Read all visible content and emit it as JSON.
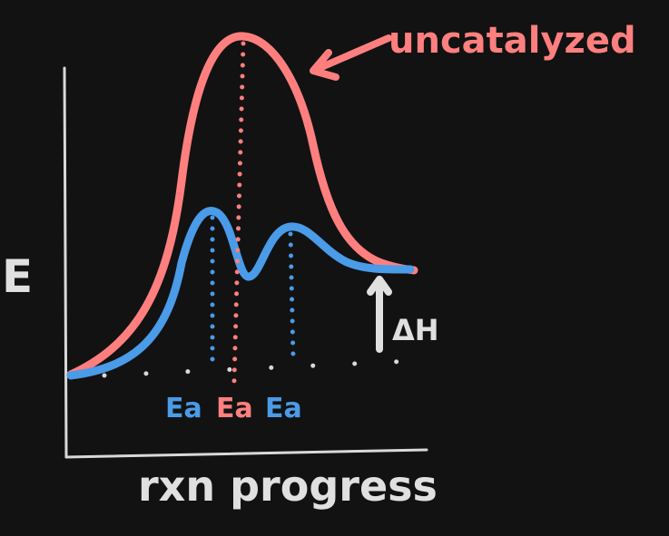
{
  "diagram": {
    "labels": {
      "uncatalyzed": "uncatalyzed",
      "energy_axis": "E",
      "x_axis": "rxn progress",
      "delta_h": "ΔH",
      "ea_left": "Ea",
      "ea_middle": "Ea",
      "ea_right": "Ea"
    },
    "colors": {
      "background": "#121212",
      "axes": "#d9d9d9",
      "uncatalyzed": "#ff7f7f",
      "catalyzed": "#4a9be8",
      "text_light": "#e0e0e0"
    }
  }
}
